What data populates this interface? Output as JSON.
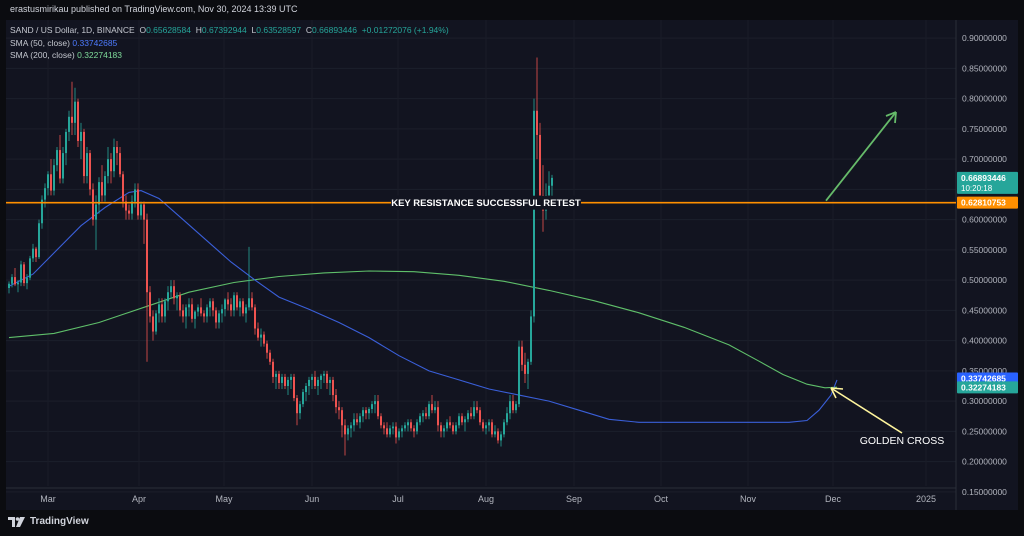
{
  "header": {
    "published": "erastusmirikau published on TradingView.com, Nov 30, 2024 13:39 UTC"
  },
  "legend": {
    "symbol": "SAND / US Dollar, 1D, BINANCE",
    "o_label": "O",
    "o": "0.65628584",
    "h_label": "H",
    "h": "0.67392944",
    "l_label": "L",
    "l": "0.63528597",
    "c_label": "C",
    "c": "0.66893446",
    "change": "+0.01272076 (+1.94%)",
    "sma50_label": "SMA (50, close)",
    "sma50": "0.33742685",
    "sma200_label": "SMA (200, close)",
    "sma200": "0.32274183"
  },
  "footer": {
    "brand": "TradingView"
  },
  "colors": {
    "up": "#26a69a",
    "down": "#ef5350",
    "sma50": "#3a5fd9",
    "sma200": "#5fbf6a",
    "resistance": "#ff8f00",
    "arrow": "#66bb6a",
    "annotation_arrow": "#fff59d"
  },
  "chart_data": {
    "type": "candlestick",
    "ylim": [
      0.12,
      0.93
    ],
    "y_ticks": [
      "0.90000000",
      "0.85000000",
      "0.80000000",
      "0.75000000",
      "0.70000000",
      "0.65000000",
      "0.60000000",
      "0.55000000",
      "0.50000000",
      "0.45000000",
      "0.40000000",
      "0.35000000",
      "0.30000000",
      "0.25000000",
      "0.20000000",
      "0.15000000"
    ],
    "x_ticks": [
      "Mar",
      "Apr",
      "May",
      "Jun",
      "Jul",
      "Aug",
      "Sep",
      "Oct",
      "Nov",
      "Dec",
      "2025"
    ],
    "price_labels": [
      {
        "value": 0.66893446,
        "text": "0.66893446",
        "subtext": "10:20:18",
        "color": "#26a69a"
      },
      {
        "value": 0.62810753,
        "text": "0.62810753",
        "color": "#ff8f00"
      },
      {
        "value": 0.33742685,
        "text": "0.33742685",
        "color": "#2962ff"
      },
      {
        "value": 0.32274183,
        "text": "0.32274183",
        "color": "#26a69a"
      }
    ],
    "resistance": {
      "value": 0.628,
      "label": "KEY RESISTANCE SUCCESSFUL RETEST"
    },
    "annotation": {
      "label": "GOLDEN CROSS"
    },
    "sma50": [
      [
        0,
        0.49
      ],
      [
        8,
        0.51
      ],
      [
        16,
        0.55
      ],
      [
        24,
        0.59
      ],
      [
        32,
        0.62
      ],
      [
        40,
        0.645
      ],
      [
        44,
        0.648
      ],
      [
        50,
        0.635
      ],
      [
        58,
        0.6
      ],
      [
        66,
        0.565
      ],
      [
        74,
        0.53
      ],
      [
        82,
        0.5
      ],
      [
        90,
        0.472
      ],
      [
        100,
        0.452
      ],
      [
        110,
        0.43
      ],
      [
        120,
        0.405
      ],
      [
        130,
        0.375
      ],
      [
        140,
        0.35
      ],
      [
        150,
        0.335
      ],
      [
        160,
        0.32
      ],
      [
        170,
        0.31
      ],
      [
        180,
        0.3
      ],
      [
        190,
        0.285
      ],
      [
        200,
        0.27
      ],
      [
        210,
        0.265
      ],
      [
        220,
        0.265
      ],
      [
        230,
        0.265
      ],
      [
        240,
        0.265
      ],
      [
        250,
        0.265
      ],
      [
        260,
        0.265
      ],
      [
        266,
        0.268
      ],
      [
        270,
        0.285
      ],
      [
        274,
        0.31
      ],
      [
        276,
        0.335
      ]
    ],
    "sma200": [
      [
        0,
        0.405
      ],
      [
        15,
        0.412
      ],
      [
        30,
        0.43
      ],
      [
        45,
        0.455
      ],
      [
        60,
        0.48
      ],
      [
        75,
        0.496
      ],
      [
        90,
        0.506
      ],
      [
        105,
        0.512
      ],
      [
        120,
        0.515
      ],
      [
        135,
        0.514
      ],
      [
        150,
        0.508
      ],
      [
        165,
        0.498
      ],
      [
        180,
        0.483
      ],
      [
        195,
        0.466
      ],
      [
        210,
        0.446
      ],
      [
        225,
        0.422
      ],
      [
        240,
        0.393
      ],
      [
        250,
        0.366
      ],
      [
        258,
        0.344
      ],
      [
        266,
        0.328
      ],
      [
        272,
        0.322
      ],
      [
        276,
        0.323
      ]
    ],
    "candles": [
      [
        0.487,
        0.498,
        0.478,
        0.494
      ],
      [
        0.494,
        0.51,
        0.488,
        0.505
      ],
      [
        0.505,
        0.52,
        0.49,
        0.493
      ],
      [
        0.493,
        0.5,
        0.48,
        0.496
      ],
      [
        0.496,
        0.532,
        0.49,
        0.526
      ],
      [
        0.526,
        0.53,
        0.49,
        0.495
      ],
      [
        0.495,
        0.51,
        0.485,
        0.504
      ],
      [
        0.504,
        0.54,
        0.5,
        0.536
      ],
      [
        0.536,
        0.56,
        0.53,
        0.552
      ],
      [
        0.552,
        0.555,
        0.53,
        0.538
      ],
      [
        0.538,
        0.6,
        0.535,
        0.594
      ],
      [
        0.594,
        0.64,
        0.585,
        0.633
      ],
      [
        0.633,
        0.66,
        0.62,
        0.652
      ],
      [
        0.652,
        0.68,
        0.64,
        0.675
      ],
      [
        0.675,
        0.7,
        0.64,
        0.648
      ],
      [
        0.648,
        0.7,
        0.64,
        0.69
      ],
      [
        0.69,
        0.72,
        0.68,
        0.715
      ],
      [
        0.715,
        0.74,
        0.66,
        0.668
      ],
      [
        0.668,
        0.72,
        0.66,
        0.71
      ],
      [
        0.71,
        0.75,
        0.69,
        0.745
      ],
      [
        0.745,
        0.78,
        0.73,
        0.77
      ],
      [
        0.77,
        0.828,
        0.74,
        0.76
      ],
      [
        0.76,
        0.818,
        0.74,
        0.795
      ],
      [
        0.795,
        0.8,
        0.72,
        0.73
      ],
      [
        0.73,
        0.76,
        0.7,
        0.745
      ],
      [
        0.745,
        0.75,
        0.66,
        0.672
      ],
      [
        0.672,
        0.72,
        0.66,
        0.71
      ],
      [
        0.71,
        0.715,
        0.64,
        0.65
      ],
      [
        0.65,
        0.66,
        0.59,
        0.6
      ],
      [
        0.6,
        0.64,
        0.55,
        0.625
      ],
      [
        0.625,
        0.67,
        0.61,
        0.662
      ],
      [
        0.662,
        0.69,
        0.63,
        0.64
      ],
      [
        0.64,
        0.68,
        0.63,
        0.672
      ],
      [
        0.672,
        0.72,
        0.66,
        0.7
      ],
      [
        0.7,
        0.71,
        0.66,
        0.68
      ],
      [
        0.68,
        0.734,
        0.67,
        0.72
      ],
      [
        0.72,
        0.73,
        0.69,
        0.71
      ],
      [
        0.71,
        0.72,
        0.67,
        0.675
      ],
      [
        0.675,
        0.68,
        0.62,
        0.63
      ],
      [
        0.63,
        0.64,
        0.6,
        0.615
      ],
      [
        0.615,
        0.625,
        0.6,
        0.61
      ],
      [
        0.61,
        0.64,
        0.6,
        0.63
      ],
      [
        0.63,
        0.66,
        0.62,
        0.65
      ],
      [
        0.65,
        0.66,
        0.6,
        0.607
      ],
      [
        0.607,
        0.63,
        0.6,
        0.625
      ],
      [
        0.625,
        0.63,
        0.56,
        0.6
      ],
      [
        0.6,
        0.61,
        0.365,
        0.48
      ],
      [
        0.48,
        0.49,
        0.43,
        0.44
      ],
      [
        0.44,
        0.45,
        0.4,
        0.415
      ],
      [
        0.415,
        0.45,
        0.41,
        0.445
      ],
      [
        0.445,
        0.47,
        0.43,
        0.46
      ],
      [
        0.46,
        0.47,
        0.43,
        0.44
      ],
      [
        0.44,
        0.47,
        0.43,
        0.465
      ],
      [
        0.465,
        0.49,
        0.45,
        0.48
      ],
      [
        0.48,
        0.5,
        0.47,
        0.49
      ],
      [
        0.49,
        0.5,
        0.46,
        0.47
      ],
      [
        0.47,
        0.48,
        0.45,
        0.475
      ],
      [
        0.475,
        0.48,
        0.44,
        0.45
      ],
      [
        0.45,
        0.46,
        0.43,
        0.44
      ],
      [
        0.44,
        0.46,
        0.42,
        0.455
      ],
      [
        0.455,
        0.47,
        0.44,
        0.46
      ],
      [
        0.46,
        0.47,
        0.43,
        0.436
      ],
      [
        0.436,
        0.45,
        0.42,
        0.448
      ],
      [
        0.448,
        0.46,
        0.44,
        0.455
      ],
      [
        0.455,
        0.47,
        0.44,
        0.445
      ],
      [
        0.445,
        0.45,
        0.43,
        0.44
      ],
      [
        0.44,
        0.46,
        0.43,
        0.455
      ],
      [
        0.455,
        0.47,
        0.44,
        0.465
      ],
      [
        0.465,
        0.47,
        0.44,
        0.45
      ],
      [
        0.45,
        0.455,
        0.42,
        0.43
      ],
      [
        0.43,
        0.45,
        0.42,
        0.445
      ],
      [
        0.445,
        0.46,
        0.43,
        0.452
      ],
      [
        0.452,
        0.47,
        0.44,
        0.468
      ],
      [
        0.468,
        0.48,
        0.45,
        0.46
      ],
      [
        0.46,
        0.47,
        0.44,
        0.45
      ],
      [
        0.45,
        0.48,
        0.44,
        0.475
      ],
      [
        0.475,
        0.48,
        0.45,
        0.455
      ],
      [
        0.455,
        0.47,
        0.44,
        0.465
      ],
      [
        0.465,
        0.47,
        0.44,
        0.445
      ],
      [
        0.445,
        0.46,
        0.43,
        0.455
      ],
      [
        0.455,
        0.555,
        0.45,
        0.47
      ],
      [
        0.47,
        0.48,
        0.45,
        0.455
      ],
      [
        0.455,
        0.46,
        0.41,
        0.42
      ],
      [
        0.42,
        0.43,
        0.4,
        0.405
      ],
      [
        0.405,
        0.42,
        0.39,
        0.41
      ],
      [
        0.41,
        0.415,
        0.39,
        0.395
      ],
      [
        0.395,
        0.4,
        0.37,
        0.38
      ],
      [
        0.38,
        0.385,
        0.36,
        0.365
      ],
      [
        0.365,
        0.37,
        0.33,
        0.34
      ],
      [
        0.34,
        0.35,
        0.32,
        0.345
      ],
      [
        0.345,
        0.35,
        0.32,
        0.33
      ],
      [
        0.33,
        0.345,
        0.32,
        0.34
      ],
      [
        0.34,
        0.345,
        0.32,
        0.325
      ],
      [
        0.325,
        0.34,
        0.31,
        0.335
      ],
      [
        0.335,
        0.345,
        0.32,
        0.34
      ],
      [
        0.34,
        0.345,
        0.3,
        0.305
      ],
      [
        0.305,
        0.31,
        0.26,
        0.28
      ],
      [
        0.28,
        0.3,
        0.27,
        0.295
      ],
      [
        0.295,
        0.32,
        0.29,
        0.315
      ],
      [
        0.315,
        0.33,
        0.3,
        0.325
      ],
      [
        0.325,
        0.34,
        0.31,
        0.335
      ],
      [
        0.335,
        0.345,
        0.32,
        0.34
      ],
      [
        0.34,
        0.35,
        0.32,
        0.325
      ],
      [
        0.325,
        0.34,
        0.31,
        0.335
      ],
      [
        0.335,
        0.345,
        0.32,
        0.342
      ],
      [
        0.342,
        0.35,
        0.33,
        0.345
      ],
      [
        0.345,
        0.35,
        0.32,
        0.33
      ],
      [
        0.33,
        0.34,
        0.31,
        0.335
      ],
      [
        0.335,
        0.34,
        0.3,
        0.31
      ],
      [
        0.31,
        0.32,
        0.28,
        0.29
      ],
      [
        0.29,
        0.3,
        0.27,
        0.285
      ],
      [
        0.285,
        0.29,
        0.24,
        0.26
      ],
      [
        0.26,
        0.27,
        0.21,
        0.245
      ],
      [
        0.245,
        0.26,
        0.235,
        0.255
      ],
      [
        0.255,
        0.265,
        0.24,
        0.26
      ],
      [
        0.26,
        0.28,
        0.25,
        0.27
      ],
      [
        0.27,
        0.28,
        0.26,
        0.265
      ],
      [
        0.265,
        0.28,
        0.255,
        0.275
      ],
      [
        0.275,
        0.29,
        0.265,
        0.285
      ],
      [
        0.285,
        0.29,
        0.27,
        0.28
      ],
      [
        0.28,
        0.29,
        0.27,
        0.287
      ],
      [
        0.287,
        0.3,
        0.28,
        0.295
      ],
      [
        0.295,
        0.31,
        0.28,
        0.3
      ],
      [
        0.3,
        0.31,
        0.27,
        0.275
      ],
      [
        0.275,
        0.28,
        0.255,
        0.26
      ],
      [
        0.26,
        0.265,
        0.245,
        0.255
      ],
      [
        0.255,
        0.265,
        0.24,
        0.245
      ],
      [
        0.245,
        0.26,
        0.24,
        0.255
      ],
      [
        0.255,
        0.265,
        0.245,
        0.258
      ],
      [
        0.258,
        0.265,
        0.23,
        0.24
      ],
      [
        0.24,
        0.255,
        0.235,
        0.25
      ],
      [
        0.25,
        0.26,
        0.24,
        0.255
      ],
      [
        0.255,
        0.265,
        0.25,
        0.26
      ],
      [
        0.26,
        0.27,
        0.25,
        0.265
      ],
      [
        0.265,
        0.27,
        0.25,
        0.255
      ],
      [
        0.255,
        0.26,
        0.24,
        0.25
      ],
      [
        0.25,
        0.27,
        0.245,
        0.265
      ],
      [
        0.265,
        0.28,
        0.26,
        0.275
      ],
      [
        0.275,
        0.285,
        0.265,
        0.28
      ],
      [
        0.28,
        0.29,
        0.27,
        0.275
      ],
      [
        0.275,
        0.3,
        0.27,
        0.295
      ],
      [
        0.295,
        0.31,
        0.28,
        0.285
      ],
      [
        0.285,
        0.3,
        0.28,
        0.29
      ],
      [
        0.29,
        0.3,
        0.25,
        0.26
      ],
      [
        0.26,
        0.265,
        0.24,
        0.25
      ],
      [
        0.25,
        0.26,
        0.24,
        0.255
      ],
      [
        0.255,
        0.27,
        0.25,
        0.265
      ],
      [
        0.265,
        0.275,
        0.255,
        0.26
      ],
      [
        0.26,
        0.265,
        0.245,
        0.25
      ],
      [
        0.25,
        0.265,
        0.245,
        0.26
      ],
      [
        0.26,
        0.28,
        0.255,
        0.275
      ],
      [
        0.275,
        0.28,
        0.26,
        0.265
      ],
      [
        0.265,
        0.275,
        0.25,
        0.27
      ],
      [
        0.27,
        0.285,
        0.265,
        0.28
      ],
      [
        0.28,
        0.29,
        0.27,
        0.275
      ],
      [
        0.275,
        0.3,
        0.27,
        0.29
      ],
      [
        0.29,
        0.3,
        0.28,
        0.285
      ],
      [
        0.285,
        0.29,
        0.26,
        0.265
      ],
      [
        0.265,
        0.27,
        0.25,
        0.255
      ],
      [
        0.255,
        0.265,
        0.245,
        0.26
      ],
      [
        0.26,
        0.27,
        0.25,
        0.265
      ],
      [
        0.265,
        0.27,
        0.24,
        0.245
      ],
      [
        0.245,
        0.26,
        0.24,
        0.25
      ],
      [
        0.25,
        0.255,
        0.23,
        0.235
      ],
      [
        0.235,
        0.25,
        0.225,
        0.245
      ],
      [
        0.245,
        0.27,
        0.24,
        0.265
      ],
      [
        0.265,
        0.29,
        0.26,
        0.28
      ],
      [
        0.28,
        0.31,
        0.27,
        0.3
      ],
      [
        0.3,
        0.31,
        0.28,
        0.285
      ],
      [
        0.285,
        0.3,
        0.28,
        0.295
      ],
      [
        0.295,
        0.4,
        0.29,
        0.39
      ],
      [
        0.39,
        0.4,
        0.35,
        0.36
      ],
      [
        0.36,
        0.38,
        0.33,
        0.345
      ],
      [
        0.345,
        0.37,
        0.32,
        0.365
      ],
      [
        0.365,
        0.45,
        0.36,
        0.44
      ],
      [
        0.44,
        0.8,
        0.43,
        0.78
      ],
      [
        0.78,
        0.868,
        0.7,
        0.74
      ],
      [
        0.74,
        0.76,
        0.62,
        0.64
      ],
      [
        0.64,
        0.69,
        0.58,
        0.615
      ],
      [
        0.615,
        0.66,
        0.6,
        0.64
      ],
      [
        0.64,
        0.68,
        0.63,
        0.656
      ],
      [
        0.656,
        0.674,
        0.635,
        0.669
      ]
    ]
  }
}
